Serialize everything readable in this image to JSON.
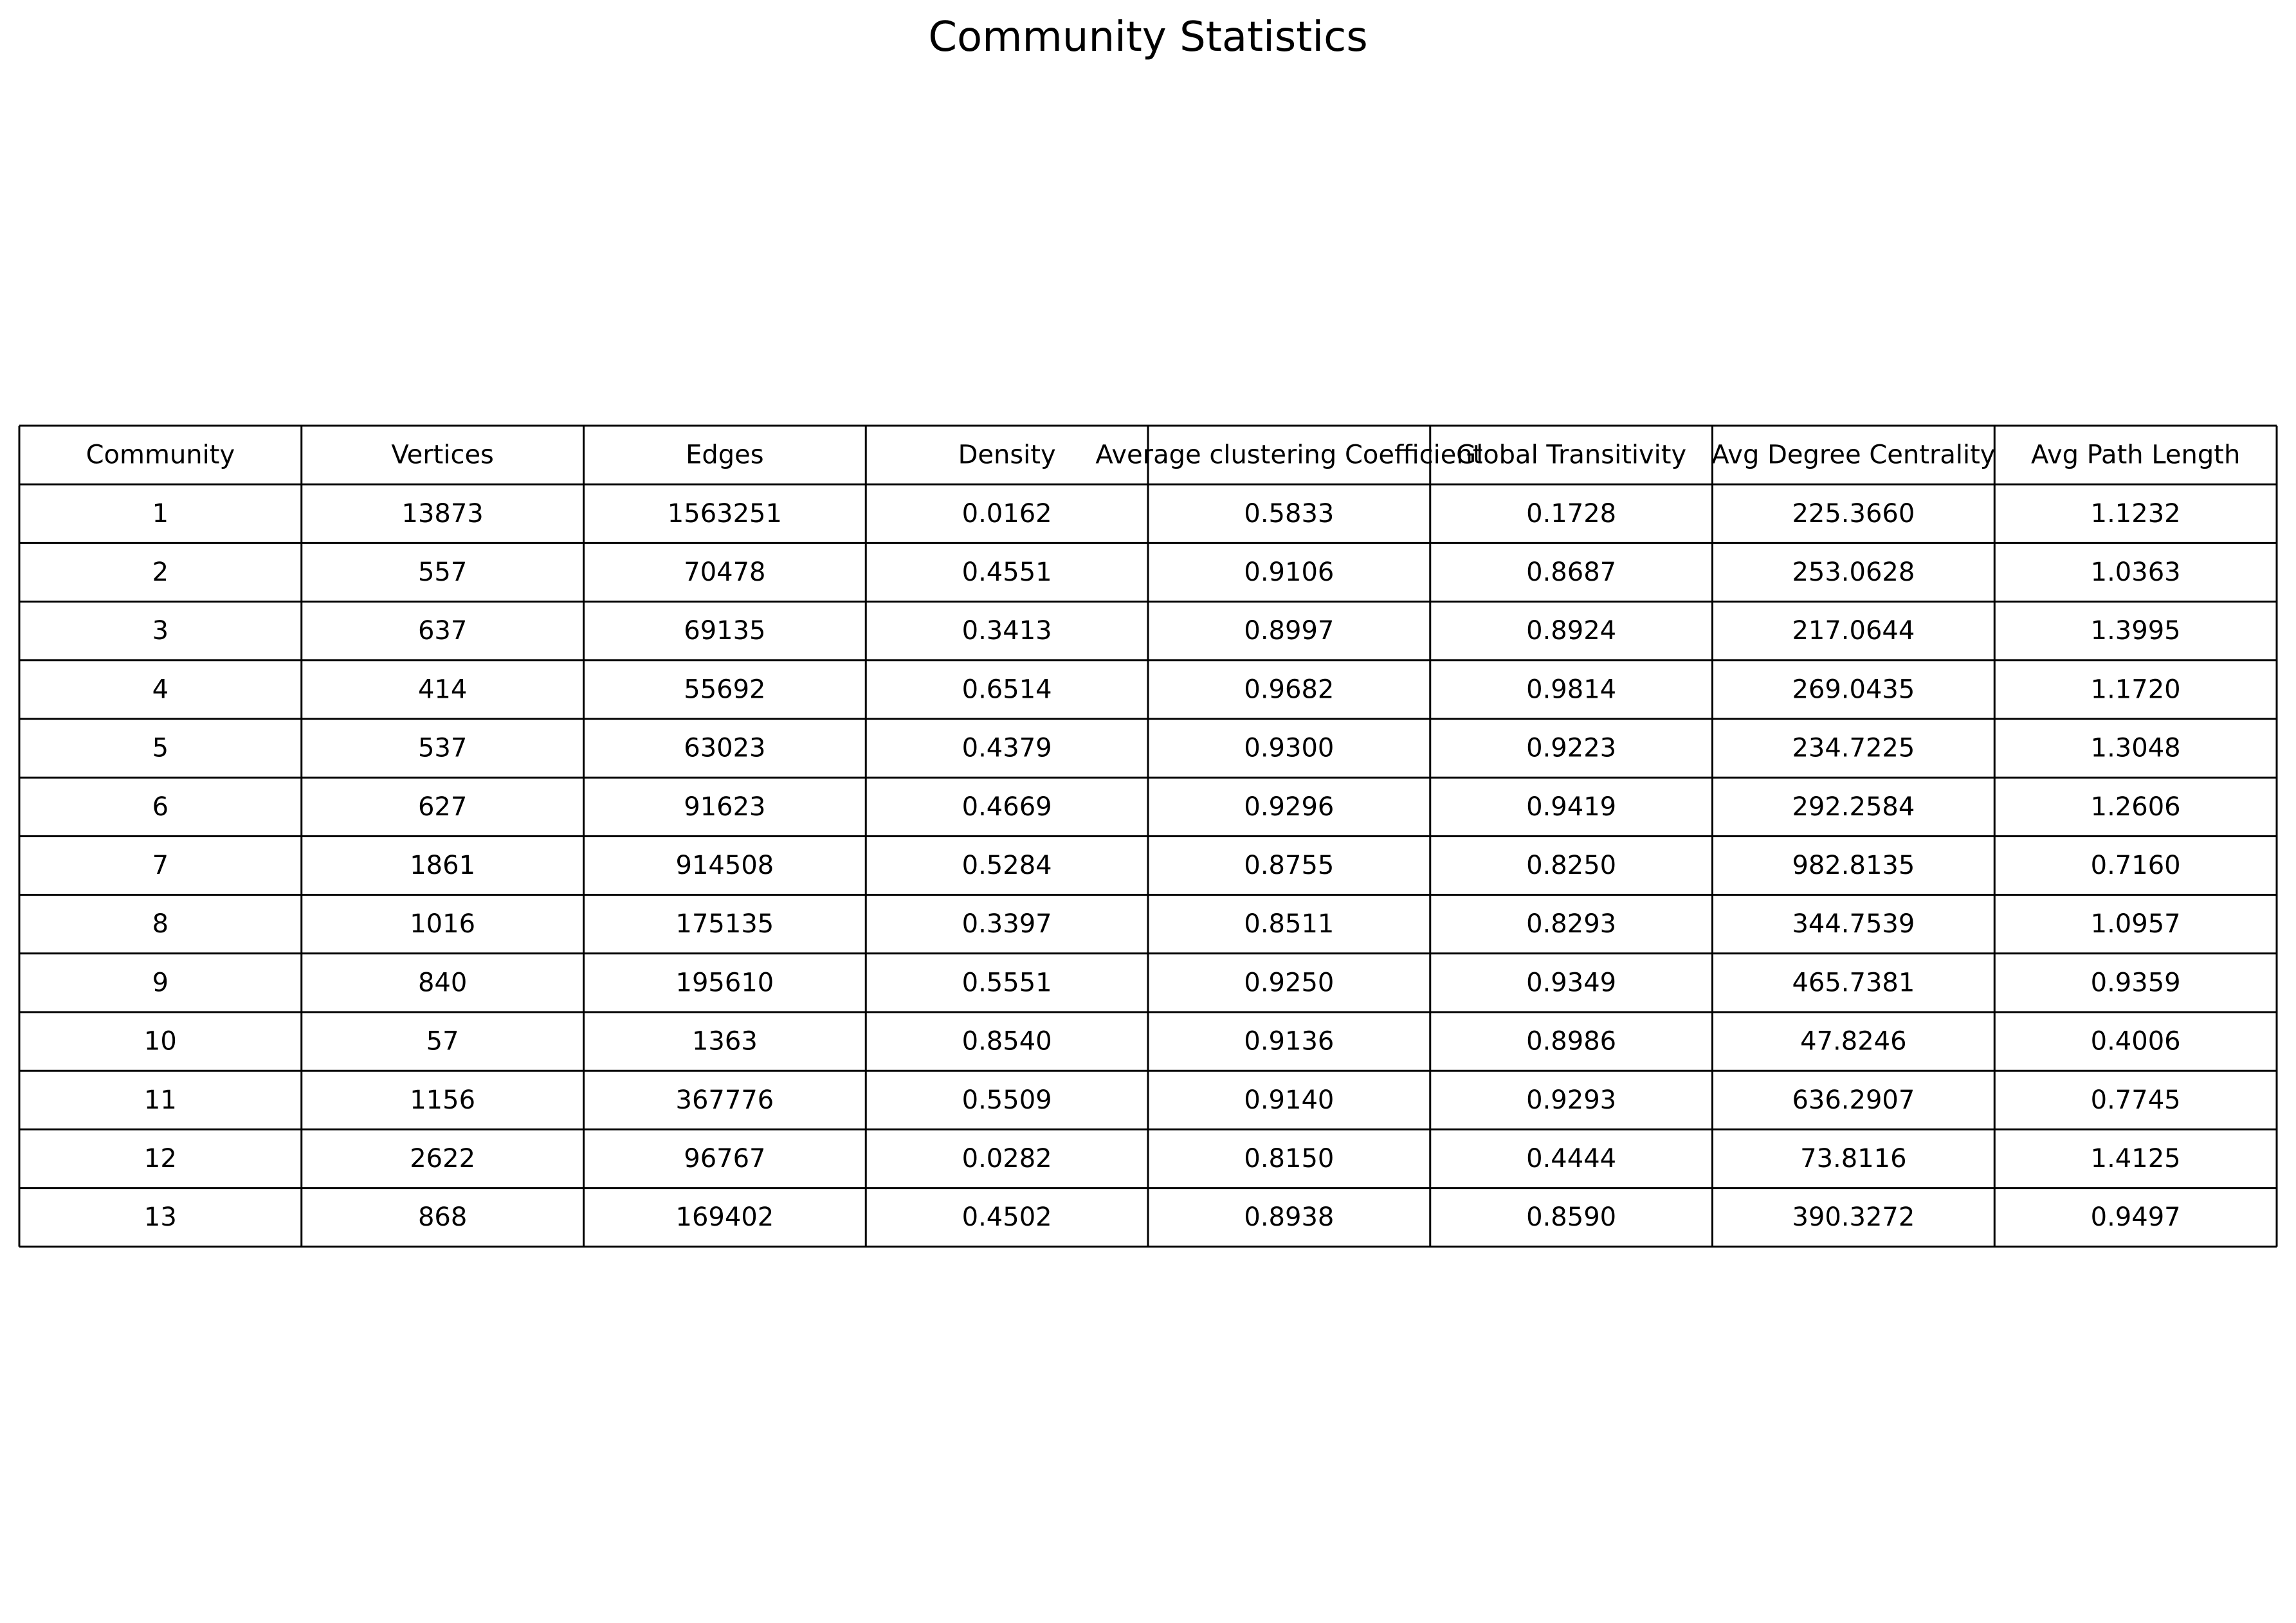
{
  "chart_data": {
    "type": "table",
    "title": "Community Statistics",
    "columns": [
      "Community",
      "Vertices",
      "Edges",
      "Density",
      "Average clustering Coefficient",
      "Global Transitivity",
      "Avg Degree Centrality",
      "Avg Path Length"
    ],
    "rows": [
      [
        "1",
        "13873",
        "1563251",
        "0.0162",
        "0.5833",
        "0.1728",
        "225.3660",
        "1.1232"
      ],
      [
        "2",
        "557",
        "70478",
        "0.4551",
        "0.9106",
        "0.8687",
        "253.0628",
        "1.0363"
      ],
      [
        "3",
        "637",
        "69135",
        "0.3413",
        "0.8997",
        "0.8924",
        "217.0644",
        "1.3995"
      ],
      [
        "4",
        "414",
        "55692",
        "0.6514",
        "0.9682",
        "0.9814",
        "269.0435",
        "1.1720"
      ],
      [
        "5",
        "537",
        "63023",
        "0.4379",
        "0.9300",
        "0.9223",
        "234.7225",
        "1.3048"
      ],
      [
        "6",
        "627",
        "91623",
        "0.4669",
        "0.9296",
        "0.9419",
        "292.2584",
        "1.2606"
      ],
      [
        "7",
        "1861",
        "914508",
        "0.5284",
        "0.8755",
        "0.8250",
        "982.8135",
        "0.7160"
      ],
      [
        "8",
        "1016",
        "175135",
        "0.3397",
        "0.8511",
        "0.8293",
        "344.7539",
        "1.0957"
      ],
      [
        "9",
        "840",
        "195610",
        "0.5551",
        "0.9250",
        "0.9349",
        "465.7381",
        "0.9359"
      ],
      [
        "10",
        "57",
        "1363",
        "0.8540",
        "0.9136",
        "0.8986",
        "47.8246",
        "0.4006"
      ],
      [
        "11",
        "1156",
        "367776",
        "0.5509",
        "0.9140",
        "0.9293",
        "636.2907",
        "0.7745"
      ],
      [
        "12",
        "2622",
        "96767",
        "0.0282",
        "0.8150",
        "0.4444",
        "73.8116",
        "1.4125"
      ],
      [
        "13",
        "868",
        "169402",
        "0.4502",
        "0.8938",
        "0.8590",
        "390.3272",
        "0.9497"
      ]
    ],
    "grid": true,
    "colors": {
      "text": "#000000",
      "lines": "#000000",
      "background": "#ffffff"
    }
  }
}
